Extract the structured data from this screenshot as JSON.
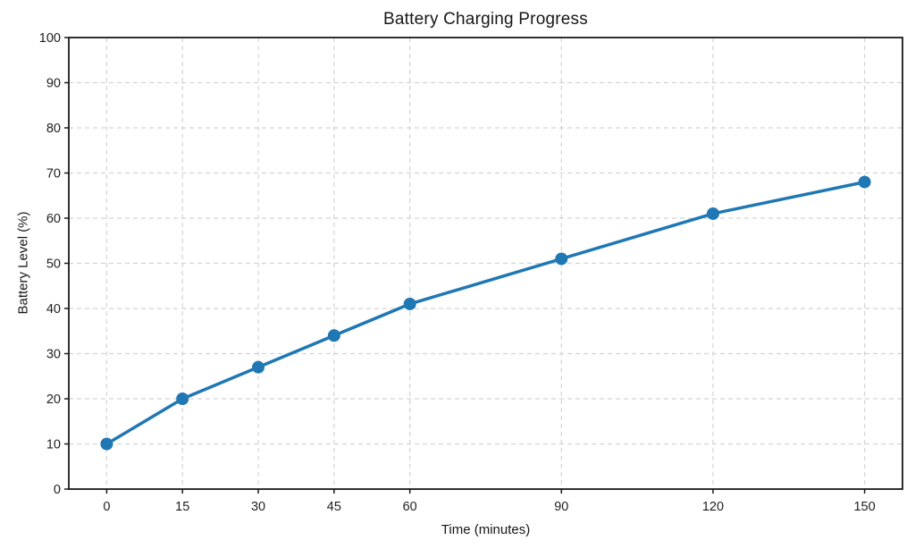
{
  "chart_data": {
    "type": "line",
    "title": "Battery Charging Progress",
    "xlabel": "Time (minutes)",
    "ylabel": "Battery Level (%)",
    "x": [
      0,
      15,
      30,
      45,
      60,
      90,
      120,
      150
    ],
    "y": [
      10,
      20,
      27,
      34,
      41,
      51,
      61,
      68
    ],
    "xticks": [
      0,
      15,
      30,
      45,
      60,
      90,
      120,
      150
    ],
    "xtick_labels": [
      "0",
      "15",
      "30",
      "45",
      "60",
      "90",
      "120",
      "150"
    ],
    "yticks": [
      0,
      10,
      20,
      30,
      40,
      50,
      60,
      70,
      80,
      90,
      100
    ],
    "ytick_labels": [
      "0",
      "10",
      "20",
      "30",
      "40",
      "50",
      "60",
      "70",
      "80",
      "90",
      "100"
    ],
    "xlim": [
      -7.5,
      157.5
    ],
    "ylim": [
      0,
      100
    ],
    "grid": true,
    "grid_style": "dashed",
    "legend": "none",
    "line_color": "#1f77b4",
    "marker_color": "#1f77b4",
    "grid_color": "#d4d4d4",
    "spine_color": "#1a1a1a",
    "text_color": "#1f1f1f"
  }
}
